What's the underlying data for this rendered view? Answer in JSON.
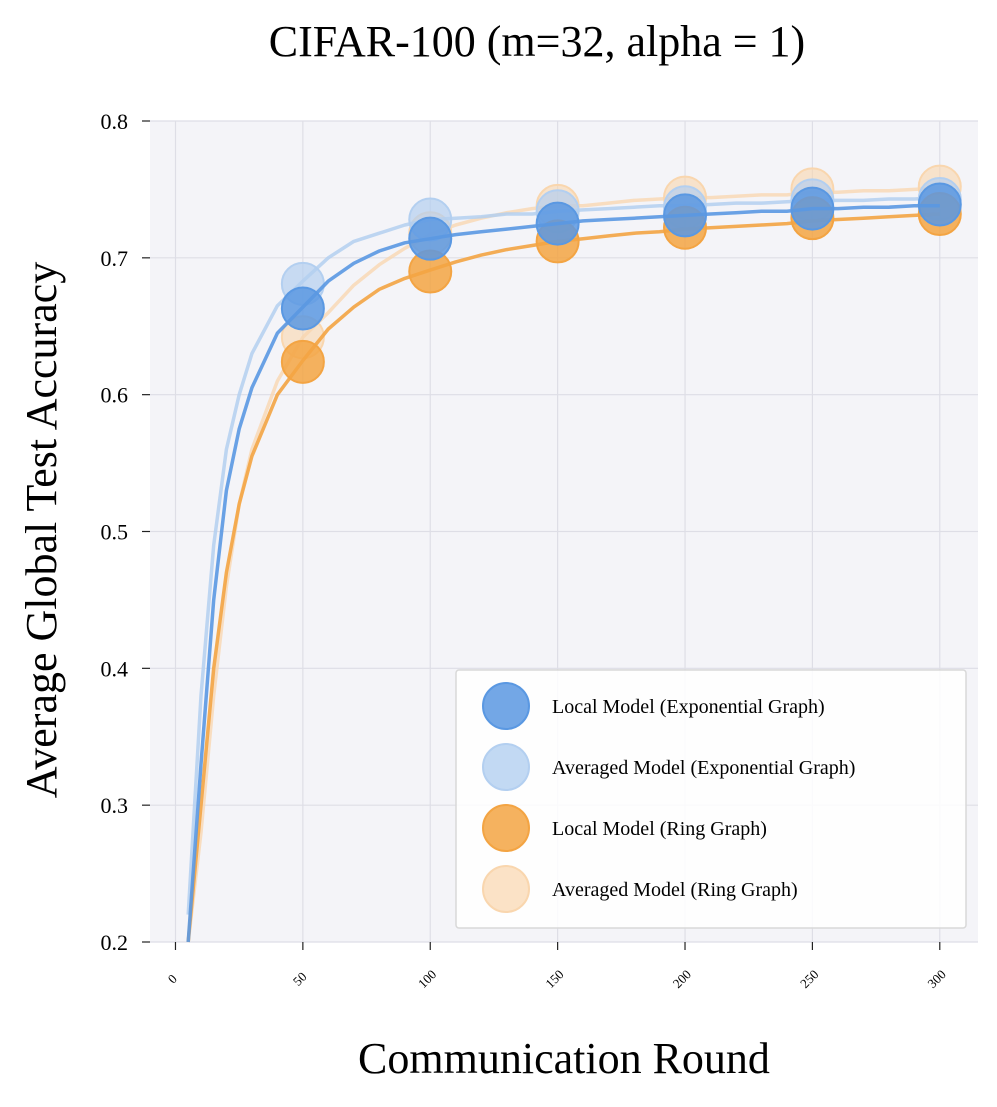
{
  "chart_data": {
    "type": "line",
    "title": "CIFAR-100 (m=32, alpha = 1)",
    "xlabel": "Communication Round",
    "ylabel": "Average Global Test Accuracy",
    "xlim": [
      -10,
      315
    ],
    "ylim": [
      0.2,
      0.8
    ],
    "x_ticks": [
      "0",
      "50",
      "100",
      "150",
      "200",
      "250",
      "300"
    ],
    "y_ticks": [
      "0.2",
      "0.3",
      "0.4",
      "0.5",
      "0.6",
      "0.7",
      "0.8"
    ],
    "grid": true,
    "legend_position": "lower-right",
    "series": [
      {
        "name": "Averaged Model (Ring Graph)",
        "color": "#f9d6ae",
        "x": [
          5,
          10,
          15,
          20,
          25,
          30,
          40,
          50,
          60,
          70,
          80,
          90,
          100,
          110,
          120,
          130,
          140,
          150,
          160,
          170,
          180,
          190,
          200,
          210,
          220,
          230,
          240,
          250,
          260,
          270,
          280,
          290,
          300
        ],
        "values": [
          0.2,
          0.28,
          0.38,
          0.46,
          0.52,
          0.56,
          0.61,
          0.642,
          0.66,
          0.68,
          0.695,
          0.707,
          0.717,
          0.724,
          0.729,
          0.733,
          0.736,
          0.738,
          0.738,
          0.74,
          0.742,
          0.743,
          0.744,
          0.744,
          0.745,
          0.746,
          0.746,
          0.748,
          0.748,
          0.749,
          0.749,
          0.75,
          0.751
        ],
        "markers_x": [
          50,
          100,
          150,
          200,
          250,
          300
        ],
        "markers_y": [
          0.642,
          0.718,
          0.738,
          0.744,
          0.75,
          0.752
        ]
      },
      {
        "name": "Averaged Model (Exponential Graph)",
        "color": "#b3cff0",
        "x": [
          5,
          10,
          15,
          20,
          25,
          30,
          40,
          50,
          60,
          70,
          80,
          90,
          100,
          110,
          120,
          130,
          140,
          150,
          160,
          170,
          180,
          190,
          200,
          210,
          220,
          230,
          240,
          250,
          260,
          270,
          280,
          290,
          300
        ],
        "values": [
          0.22,
          0.38,
          0.49,
          0.56,
          0.6,
          0.63,
          0.665,
          0.683,
          0.7,
          0.712,
          0.718,
          0.724,
          0.728,
          0.729,
          0.73,
          0.732,
          0.732,
          0.734,
          0.735,
          0.736,
          0.737,
          0.738,
          0.738,
          0.739,
          0.74,
          0.74,
          0.741,
          0.742,
          0.742,
          0.742,
          0.743,
          0.743,
          0.744
        ],
        "markers_x": [
          50,
          100,
          150,
          200,
          250,
          300
        ],
        "markers_y": [
          0.681,
          0.728,
          0.734,
          0.737,
          0.742,
          0.743
        ]
      },
      {
        "name": "Local Model (Ring Graph)",
        "color": "#f3a443",
        "x": [
          5,
          10,
          15,
          20,
          25,
          30,
          40,
          50,
          60,
          70,
          80,
          90,
          100,
          110,
          120,
          130,
          140,
          150,
          160,
          170,
          180,
          190,
          200,
          210,
          220,
          230,
          240,
          250,
          260,
          270,
          280,
          290,
          300
        ],
        "values": [
          0.2,
          0.3,
          0.4,
          0.47,
          0.52,
          0.555,
          0.6,
          0.625,
          0.648,
          0.664,
          0.677,
          0.685,
          0.691,
          0.697,
          0.702,
          0.706,
          0.709,
          0.712,
          0.714,
          0.716,
          0.718,
          0.719,
          0.721,
          0.722,
          0.723,
          0.724,
          0.725,
          0.727,
          0.728,
          0.729,
          0.73,
          0.731,
          0.732
        ],
        "markers_x": [
          50,
          100,
          150,
          200,
          250,
          300
        ],
        "markers_y": [
          0.624,
          0.69,
          0.712,
          0.722,
          0.729,
          0.732
        ]
      },
      {
        "name": "Local Model (Exponential Graph)",
        "color": "#5a98e2",
        "x": [
          5,
          10,
          15,
          20,
          25,
          30,
          40,
          50,
          60,
          70,
          80,
          90,
          100,
          110,
          120,
          130,
          140,
          150,
          160,
          170,
          180,
          190,
          200,
          210,
          220,
          230,
          240,
          250,
          260,
          270,
          280,
          290,
          300
        ],
        "values": [
          0.2,
          0.33,
          0.45,
          0.53,
          0.575,
          0.605,
          0.645,
          0.664,
          0.683,
          0.696,
          0.705,
          0.711,
          0.714,
          0.717,
          0.719,
          0.721,
          0.723,
          0.725,
          0.727,
          0.728,
          0.729,
          0.73,
          0.731,
          0.732,
          0.733,
          0.734,
          0.734,
          0.736,
          0.736,
          0.737,
          0.737,
          0.738,
          0.738
        ],
        "markers_x": [
          50,
          100,
          150,
          200,
          250,
          300
        ],
        "markers_y": [
          0.663,
          0.714,
          0.725,
          0.731,
          0.736,
          0.739
        ]
      }
    ],
    "legend": [
      {
        "label": "Local Model (Exponential Graph)",
        "color": "#5a98e2",
        "opacity": 0.85
      },
      {
        "label": "Averaged Model (Exponential Graph)",
        "color": "#b3cff0",
        "opacity": 0.8
      },
      {
        "label": "Local Model (Ring Graph)",
        "color": "#f3a443",
        "opacity": 0.85
      },
      {
        "label": "Averaged Model (Ring Graph)",
        "color": "#f9d6ae",
        "opacity": 0.7
      }
    ],
    "background_color": "#f4f4f8",
    "grid_color": "#dedee6"
  }
}
